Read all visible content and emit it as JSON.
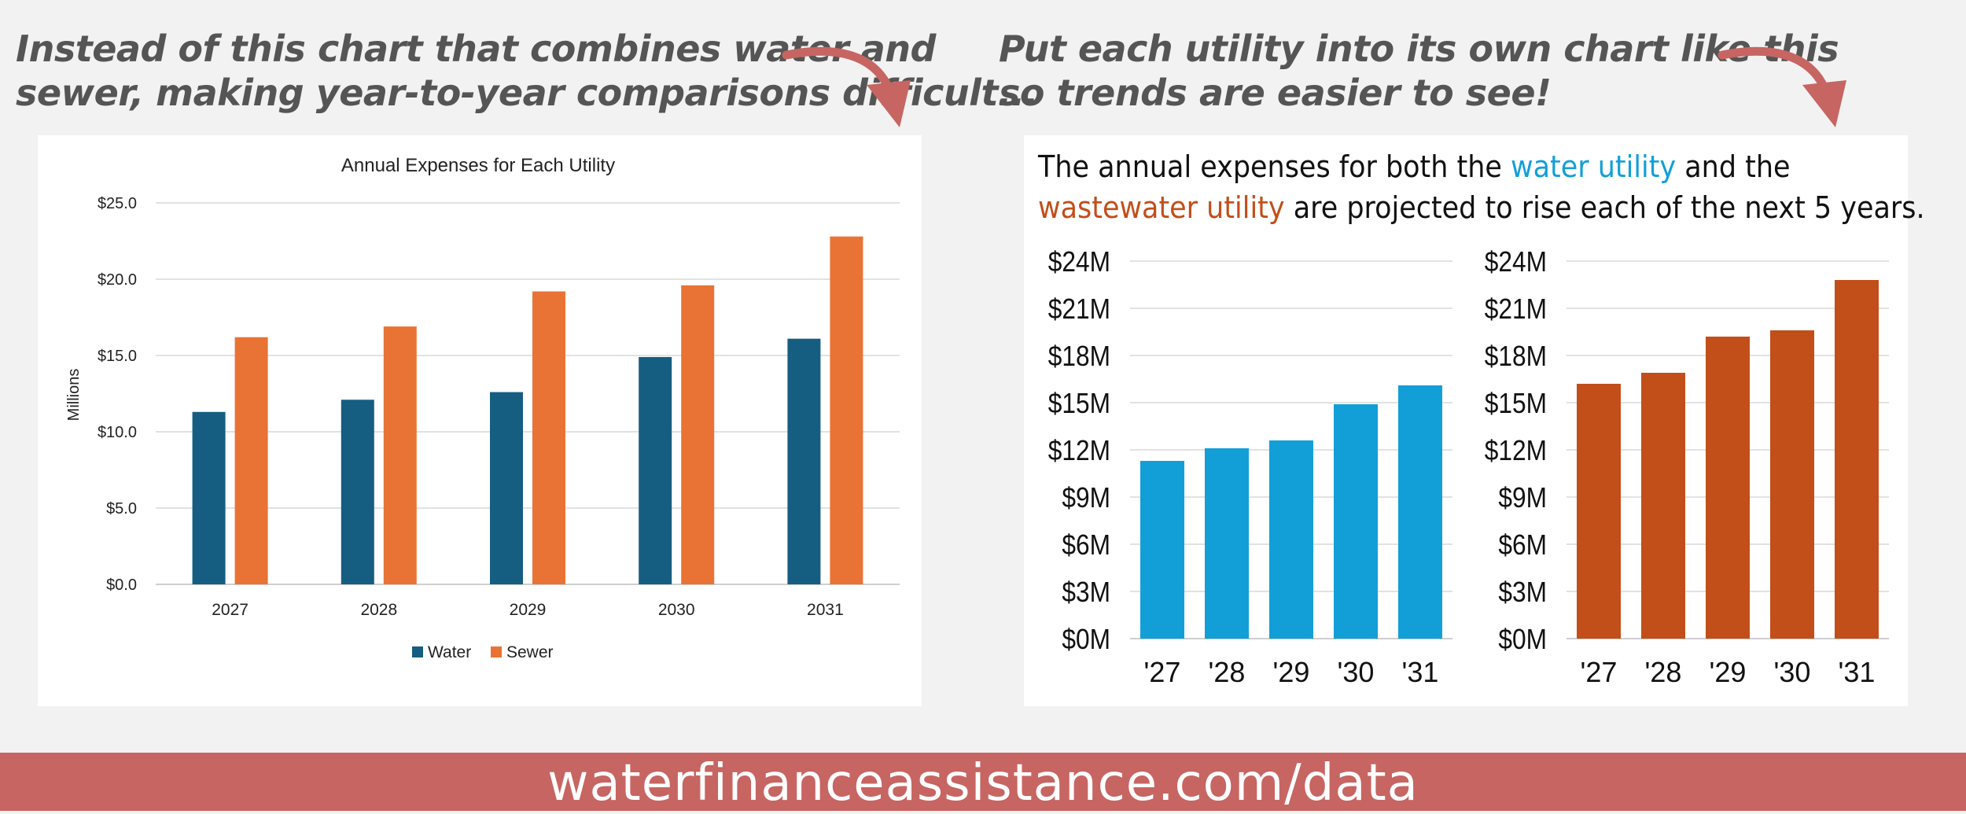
{
  "captions": {
    "left": [
      "Instead of this chart that combines water and",
      "sewer, making year-to-year comparisons difficult..."
    ],
    "right": [
      "Put each utility into its own chart like this",
      "so trends are easier to see!"
    ]
  },
  "headline": {
    "part1": "The annual expenses for both the ",
    "water": "water utility",
    "part2": " and the",
    "sewer": "wastewater utility",
    "part3": " are projected to rise each of the next 5 years."
  },
  "footer": {
    "text": "waterfinanceassistance.com/data"
  },
  "colors": {
    "arrow": "#c76562",
    "water_dark": "#155e81",
    "sewer_orange": "#e97334",
    "water_light": "#129fd8",
    "sewer_dark": "#c24e1a",
    "footer_bg": "#c76562"
  },
  "chart_data": [
    {
      "type": "bar",
      "title": "Annual Expenses for Each Utility",
      "ylabel": "Millions",
      "xlabel": "",
      "categories": [
        "2027",
        "2028",
        "2029",
        "2030",
        "2031"
      ],
      "series": [
        {
          "name": "Water",
          "color": "#155e81",
          "values": [
            11.3,
            12.1,
            12.6,
            14.9,
            16.1
          ]
        },
        {
          "name": "Sewer",
          "color": "#e97334",
          "values": [
            16.2,
            16.9,
            19.2,
            19.6,
            22.8
          ]
        }
      ],
      "ylim": [
        0,
        25
      ],
      "yticks": [
        0,
        5,
        10,
        15,
        20,
        25
      ],
      "ytick_labels": [
        "$0.0",
        "$5.0",
        "$10.0",
        "$15.0",
        "$20.0",
        "$25.0"
      ],
      "grid": true,
      "legend": "bottom"
    },
    {
      "type": "bar",
      "title": "",
      "categories": [
        "'27",
        "'28",
        "'29",
        "'30",
        "'31"
      ],
      "series": [
        {
          "color": "#129fd8",
          "values": [
            11.3,
            12.1,
            12.6,
            14.9,
            16.1
          ]
        }
      ],
      "ylim": [
        0,
        24
      ],
      "yticks": [
        0,
        3,
        6,
        9,
        12,
        15,
        18,
        21,
        24
      ],
      "ytick_labels": [
        "$0M",
        "$3M",
        "$6M",
        "$9M",
        "$12M",
        "$15M",
        "$18M",
        "$21M",
        "$24M"
      ],
      "grid": true
    },
    {
      "type": "bar",
      "title": "",
      "categories": [
        "'27",
        "'28",
        "'29",
        "'30",
        "'31"
      ],
      "series": [
        {
          "color": "#c24e1a",
          "values": [
            16.2,
            16.9,
            19.2,
            19.6,
            22.8
          ]
        }
      ],
      "ylim": [
        0,
        24
      ],
      "yticks": [
        0,
        3,
        6,
        9,
        12,
        15,
        18,
        21,
        24
      ],
      "ytick_labels": [
        "$0M",
        "$3M",
        "$6M",
        "$9M",
        "$12M",
        "$15M",
        "$18M",
        "$21M",
        "$24M"
      ],
      "grid": true
    }
  ]
}
